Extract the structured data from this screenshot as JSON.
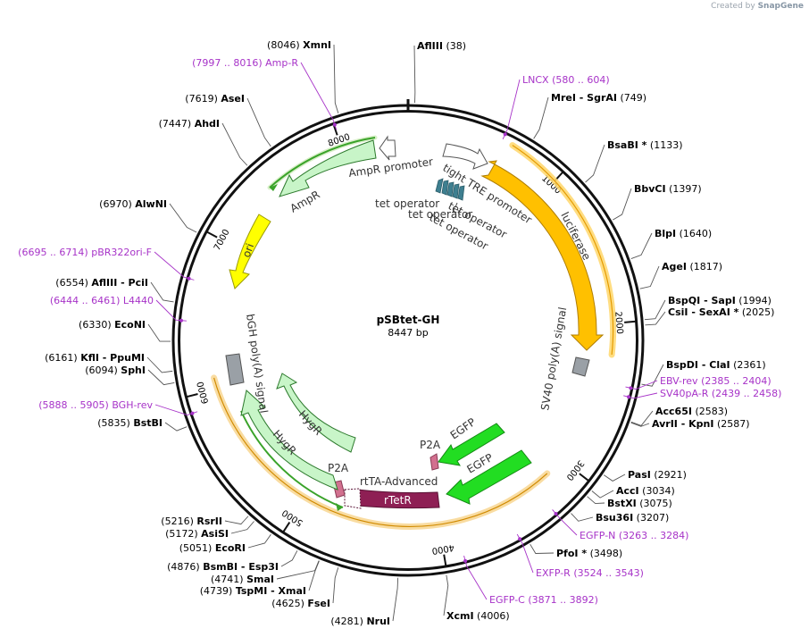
{
  "branding": {
    "created_by": "Created by",
    "app": "SnapGene"
  },
  "plasmid": {
    "name": "pSBtet-GH",
    "length": 8447,
    "size_label": "8447 bp"
  },
  "tick_labels": [
    "1000",
    "2000",
    "3000",
    "4000",
    "5000",
    "6000",
    "7000",
    "8000"
  ],
  "sites": [
    {
      "kind": "enzyme",
      "pos": 38,
      "text": "AflIII",
      "coord": "(38)"
    },
    {
      "kind": "enzyme",
      "pos": 749,
      "text": "MreI - SgrAI",
      "coord": "(749)"
    },
    {
      "kind": "enzyme",
      "pos": 1133,
      "text": "BsaBI *",
      "coord": "(1133)"
    },
    {
      "kind": "enzyme",
      "pos": 1397,
      "text": "BbvCI",
      "coord": "(1397)"
    },
    {
      "kind": "enzyme",
      "pos": 1640,
      "text": "BlpI",
      "coord": "(1640)"
    },
    {
      "kind": "enzyme",
      "pos": 1817,
      "text": "AgeI",
      "coord": "(1817)"
    },
    {
      "kind": "enzyme",
      "pos": 1994,
      "text": "BspQI - SapI",
      "coord": "(1994)"
    },
    {
      "kind": "enzyme",
      "pos": 2025,
      "text": "CsiI - SexAI *",
      "coord": "(2025)"
    },
    {
      "kind": "enzyme",
      "pos": 2361,
      "text": "BspDI - ClaI",
      "coord": "(2361)"
    },
    {
      "kind": "enzyme",
      "pos": 2583,
      "text": "Acc65I",
      "coord": "(2583)"
    },
    {
      "kind": "enzyme",
      "pos": 2587,
      "text": "AvrII - KpnI",
      "coord": "(2587)"
    },
    {
      "kind": "enzyme",
      "pos": 2921,
      "text": "PasI",
      "coord": "(2921)"
    },
    {
      "kind": "enzyme",
      "pos": 3034,
      "text": "AccI",
      "coord": "(3034)"
    },
    {
      "kind": "enzyme",
      "pos": 3075,
      "text": "BstXI",
      "coord": "(3075)"
    },
    {
      "kind": "enzyme",
      "pos": 3207,
      "text": "Bsu36I",
      "coord": "(3207)"
    },
    {
      "kind": "enzyme",
      "pos": 3498,
      "text": "PfoI *",
      "coord": "(3498)"
    },
    {
      "kind": "enzyme",
      "pos": 4006,
      "text": "XcmI",
      "coord": "(4006)"
    },
    {
      "kind": "enzyme",
      "pos": 4281,
      "text": "NruI",
      "coord": "(4281)"
    },
    {
      "kind": "enzyme",
      "pos": 4625,
      "text": "FseI",
      "coord": "(4625)"
    },
    {
      "kind": "enzyme",
      "pos": 4739,
      "text": "TspMI - XmaI",
      "coord": "(4739)"
    },
    {
      "kind": "enzyme",
      "pos": 4741,
      "text": "SmaI",
      "coord": "(4741)"
    },
    {
      "kind": "enzyme",
      "pos": 4876,
      "text": "BsmBI - Esp3I",
      "coord": "(4876)"
    },
    {
      "kind": "enzyme",
      "pos": 5051,
      "text": "EcoRI",
      "coord": "(5051)"
    },
    {
      "kind": "enzyme",
      "pos": 5172,
      "text": "AsiSI",
      "coord": "(5172)"
    },
    {
      "kind": "enzyme",
      "pos": 5216,
      "text": "RsrII",
      "coord": "(5216)"
    },
    {
      "kind": "enzyme",
      "pos": 5835,
      "text": "BstBI",
      "coord": "(5835)"
    },
    {
      "kind": "enzyme",
      "pos": 6094,
      "text": "SphI",
      "coord": "(6094)"
    },
    {
      "kind": "enzyme",
      "pos": 6161,
      "text": "KflI - PpuMI",
      "coord": "(6161)"
    },
    {
      "kind": "enzyme",
      "pos": 6330,
      "text": "EcoNI",
      "coord": "(6330)"
    },
    {
      "kind": "enzyme",
      "pos": 6554,
      "text": "AflIII - PciI",
      "coord": "(6554)"
    },
    {
      "kind": "enzyme",
      "pos": 6970,
      "text": "AlwNI",
      "coord": "(6970)"
    },
    {
      "kind": "enzyme",
      "pos": 7447,
      "text": "AhdI",
      "coord": "(7447)"
    },
    {
      "kind": "enzyme",
      "pos": 7619,
      "text": "AseI",
      "coord": "(7619)"
    },
    {
      "kind": "enzyme",
      "pos": 8046,
      "text": "XmnI",
      "coord": "(8046)"
    },
    {
      "kind": "primer",
      "pos": 592,
      "text": "LNCX",
      "coord": "(580 .. 604)"
    },
    {
      "kind": "primer",
      "pos": 2395,
      "text": "EBV-rev",
      "coord": "(2385 .. 2404)"
    },
    {
      "kind": "primer",
      "pos": 2449,
      "text": "SV40pA-R",
      "coord": "(2439 .. 2458)"
    },
    {
      "kind": "primer",
      "pos": 3274,
      "text": "EGFP-N",
      "coord": "(3263 .. 3284)"
    },
    {
      "kind": "primer",
      "pos": 3534,
      "text": "EXFP-R",
      "coord": "(3524 .. 3543)"
    },
    {
      "kind": "primer",
      "pos": 3882,
      "text": "EGFP-C",
      "coord": "(3871 .. 3892)"
    },
    {
      "kind": "primer",
      "pos": 5897,
      "text": "BGH-rev",
      "coord": "(5888 .. 5905)"
    },
    {
      "kind": "primer",
      "pos": 6453,
      "text": "L4440",
      "coord": "(6444 .. 6461)"
    },
    {
      "kind": "primer",
      "pos": 6705,
      "text": "pBR322ori-F",
      "coord": "(6695 .. 6714)"
    },
    {
      "kind": "primer",
      "pos": 8006,
      "text": "Amp-R",
      "coord": "(7997 .. 8016)"
    }
  ],
  "features": [
    {
      "label": "tight TRE promoter",
      "type": "promoter",
      "color": "#ffffff"
    },
    {
      "label": "tet operator",
      "type": "operator",
      "color": "#3a7a8c"
    },
    {
      "label": "luciferase",
      "type": "cds",
      "color": "#ffc000"
    },
    {
      "label": "SV40 poly(A) signal",
      "type": "polyA",
      "color": "#9aa0a6"
    },
    {
      "label": "EGFP",
      "type": "cds",
      "color": "#22dd22"
    },
    {
      "label": "P2A",
      "type": "cds",
      "color": "#d2708f"
    },
    {
      "label": "rtTA-Advanced",
      "type": "cds",
      "color": "#ffffff"
    },
    {
      "label": "rTetR",
      "type": "cds",
      "color": "#8e1f54"
    },
    {
      "label": "HygR",
      "type": "cds",
      "color": "#c8f5c8"
    },
    {
      "label": "bGH poly(A) signal",
      "type": "polyA",
      "color": "#9aa0a6"
    },
    {
      "label": "ori",
      "type": "rep_origin",
      "color": "#ffff00"
    },
    {
      "label": "AmpR",
      "type": "cds",
      "color": "#c8f5c8"
    },
    {
      "label": "AmpR promoter",
      "type": "promoter",
      "color": "#ffffff"
    }
  ],
  "colors": {
    "enzyme": "#000000",
    "primer": "#a733c8",
    "backbone": "#111111"
  }
}
